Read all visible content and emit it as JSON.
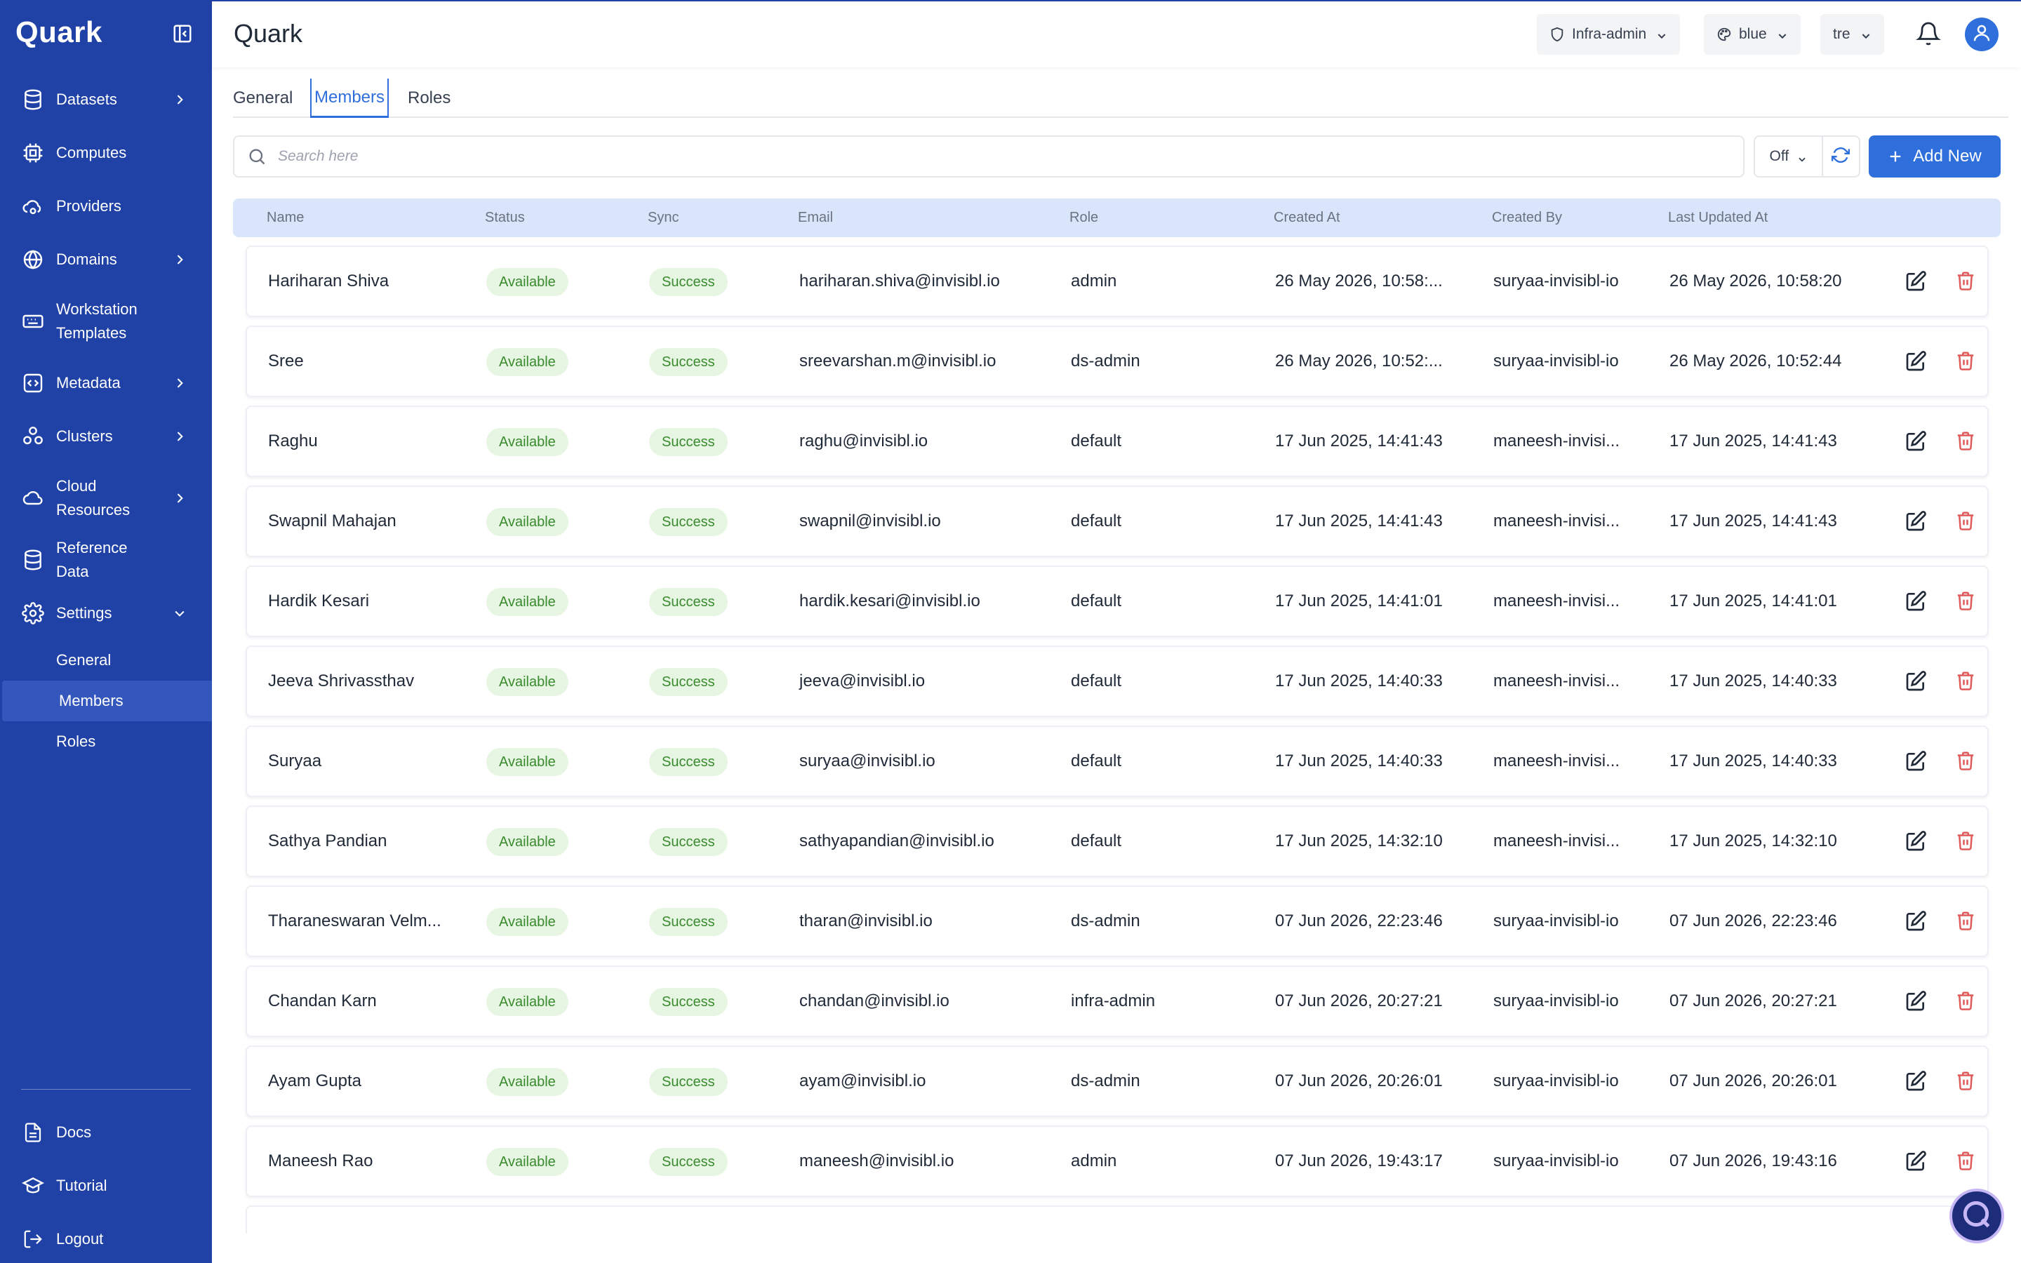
{
  "app": {
    "brand": "Quark",
    "title": "Quark"
  },
  "header": {
    "workspace": "Infra-admin",
    "theme": "blue",
    "org": "tre"
  },
  "sidebar": {
    "items": [
      {
        "label": "Datasets",
        "icon": "database-icon",
        "has_chevron": true
      },
      {
        "label": "Computes",
        "icon": "cpu-icon",
        "has_chevron": false
      },
      {
        "label": "Providers",
        "icon": "cloud-cog-icon",
        "has_chevron": false
      },
      {
        "label": "Domains",
        "icon": "globe-icon",
        "has_chevron": true
      },
      {
        "label": "Workstation Templates",
        "icon": "keyboard-icon",
        "has_chevron": false
      },
      {
        "label": "Metadata",
        "icon": "code-icon",
        "has_chevron": true
      },
      {
        "label": "Clusters",
        "icon": "boxes-icon",
        "has_chevron": true
      },
      {
        "label": "Cloud Resources",
        "icon": "cloud-icon",
        "has_chevron": true
      },
      {
        "label": "Reference Data",
        "icon": "database-icon",
        "has_chevron": false
      },
      {
        "label": "Settings",
        "icon": "gear-icon",
        "has_chevron": true,
        "expanded": true
      }
    ],
    "settings_children": [
      "General",
      "Members",
      "Roles"
    ],
    "active_child": "Members",
    "bottom": [
      {
        "label": "Docs",
        "icon": "document-icon"
      },
      {
        "label": "Tutorial",
        "icon": "graduation-cap-icon"
      },
      {
        "label": "Logout",
        "icon": "logout-icon"
      }
    ]
  },
  "tabs": [
    "General",
    "Members",
    "Roles"
  ],
  "active_tab": "Members",
  "search": {
    "placeholder": "Search here"
  },
  "filter": {
    "value": "Off"
  },
  "add_button": {
    "label": "Add New"
  },
  "table": {
    "columns": [
      "Name",
      "Status",
      "Sync",
      "Email",
      "Role",
      "Created At",
      "Created By",
      "Last Updated At"
    ],
    "rows": [
      {
        "name": "Hariharan Shiva",
        "status": "Available",
        "sync": "Success",
        "email": "hariharan.shiva@invisibl.io",
        "role": "admin",
        "created_at": "26 May 2026, 10:58:...",
        "created_by": "suryaa-invisibl-io",
        "updated_at": "26 May 2026, 10:58:20"
      },
      {
        "name": "Sree",
        "status": "Available",
        "sync": "Success",
        "email": "sreevarshan.m@invisibl.io",
        "role": "ds-admin",
        "created_at": "26 May 2026, 10:52:...",
        "created_by": "suryaa-invisibl-io",
        "updated_at": "26 May 2026, 10:52:44"
      },
      {
        "name": "Raghu",
        "status": "Available",
        "sync": "Success",
        "email": "raghu@invisibl.io",
        "role": "default",
        "created_at": "17 Jun 2025, 14:41:43",
        "created_by": "maneesh-invisi...",
        "updated_at": "17 Jun 2025, 14:41:43"
      },
      {
        "name": "Swapnil Mahajan",
        "status": "Available",
        "sync": "Success",
        "email": "swapnil@invisibl.io",
        "role": "default",
        "created_at": "17 Jun 2025, 14:41:43",
        "created_by": "maneesh-invisi...",
        "updated_at": "17 Jun 2025, 14:41:43"
      },
      {
        "name": "Hardik Kesari",
        "status": "Available",
        "sync": "Success",
        "email": "hardik.kesari@invisibl.io",
        "role": "default",
        "created_at": "17 Jun 2025, 14:41:01",
        "created_by": "maneesh-invisi...",
        "updated_at": "17 Jun 2025, 14:41:01"
      },
      {
        "name": "Jeeva Shrivassthav",
        "status": "Available",
        "sync": "Success",
        "email": "jeeva@invisibl.io",
        "role": "default",
        "created_at": "17 Jun 2025, 14:40:33",
        "created_by": "maneesh-invisi...",
        "updated_at": "17 Jun 2025, 14:40:33"
      },
      {
        "name": "Suryaa",
        "status": "Available",
        "sync": "Success",
        "email": "suryaa@invisibl.io",
        "role": "default",
        "created_at": "17 Jun 2025, 14:40:33",
        "created_by": "maneesh-invisi...",
        "updated_at": "17 Jun 2025, 14:40:33"
      },
      {
        "name": "Sathya Pandian",
        "status": "Available",
        "sync": "Success",
        "email": "sathyapandian@invisibl.io",
        "role": "default",
        "created_at": "17 Jun 2025, 14:32:10",
        "created_by": "maneesh-invisi...",
        "updated_at": "17 Jun 2025, 14:32:10"
      },
      {
        "name": "Tharaneswaran Velm...",
        "status": "Available",
        "sync": "Success",
        "email": "tharan@invisibl.io",
        "role": "ds-admin",
        "created_at": "07 Jun 2026, 22:23:46",
        "created_by": "suryaa-invisibl-io",
        "updated_at": "07 Jun 2026, 22:23:46"
      },
      {
        "name": "Chandan Karn",
        "status": "Available",
        "sync": "Success",
        "email": "chandan@invisibl.io",
        "role": "infra-admin",
        "created_at": "07 Jun 2026, 20:27:21",
        "created_by": "suryaa-invisibl-io",
        "updated_at": "07 Jun 2026, 20:27:21"
      },
      {
        "name": "Ayam Gupta",
        "status": "Available",
        "sync": "Success",
        "email": "ayam@invisibl.io",
        "role": "ds-admin",
        "created_at": "07 Jun 2026, 20:26:01",
        "created_by": "suryaa-invisibl-io",
        "updated_at": "07 Jun 2026, 20:26:01"
      },
      {
        "name": "Maneesh Rao",
        "status": "Available",
        "sync": "Success",
        "email": "maneesh@invisibl.io",
        "role": "admin",
        "created_at": "07 Jun 2026, 19:43:17",
        "created_by": "suryaa-invisibl-io",
        "updated_at": "07 Jun 2026, 19:43:16"
      }
    ]
  },
  "colors": {
    "sidebar_bg": "#2042a6",
    "accent": "#2f6fdc",
    "header_row_bg": "#d8e5fb",
    "status_pill_bg": "#e6f6e3",
    "status_pill_text": "#3a8a2e",
    "delete_red": "#e05a5a"
  }
}
